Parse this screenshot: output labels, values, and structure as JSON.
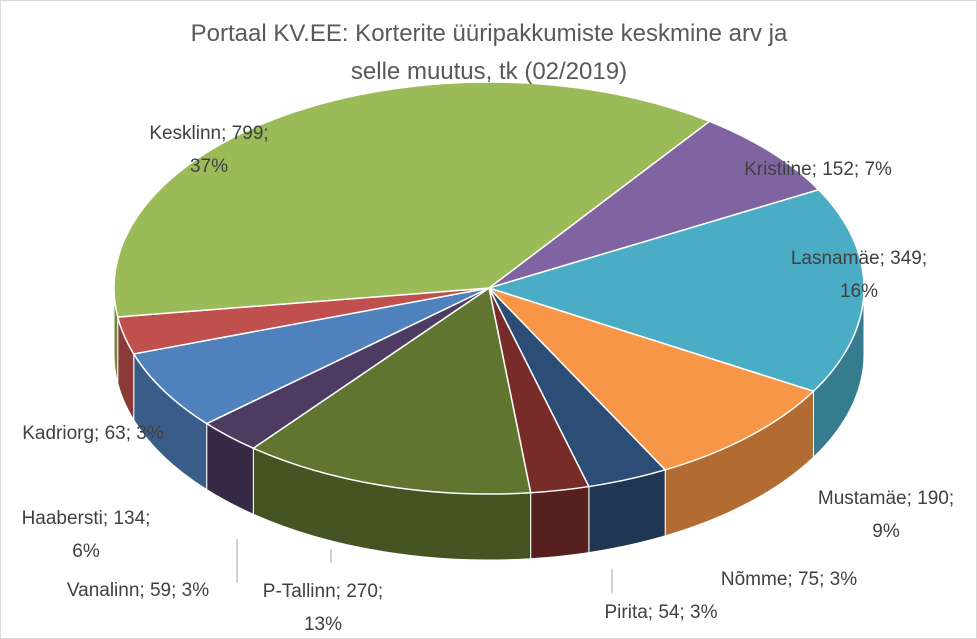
{
  "chart_data": {
    "type": "pie",
    "title_lines": [
      "Portaal KV.EE: Korterite üüripakkumiste keskmine arv ja",
      "selle muutus, tk (02/2019)"
    ],
    "slices": [
      {
        "name": "Kristiine",
        "value": 152,
        "label_lines": [
          "Kristiine; 152; 7%"
        ],
        "color": "#8064a2"
      },
      {
        "name": "Lasnamäe",
        "value": 349,
        "label_lines": [
          "Lasnamäe; 349;",
          "16%"
        ],
        "color": "#4bacc6"
      },
      {
        "name": "Mustamäe",
        "value": 190,
        "label_lines": [
          "Mustamäe; 190;",
          "9%"
        ],
        "color": "#f79646"
      },
      {
        "name": "Nõmme",
        "value": 75,
        "label_lines": [
          "Nõmme; 75; 3%"
        ],
        "color": "#2c4d75"
      },
      {
        "name": "Pirita",
        "value": 54,
        "label_lines": [
          "Pirita; 54; 3%"
        ],
        "color": "#772c2a"
      },
      {
        "name": "P-Tallinn",
        "value": 270,
        "label_lines": [
          "P-Tallinn; 270;",
          "13%"
        ],
        "color": "#5f7530"
      },
      {
        "name": "Vanalinn",
        "value": 59,
        "label_lines": [
          "Vanalinn; 59; 3%"
        ],
        "color": "#4d3b62"
      },
      {
        "name": "Haabersti",
        "value": 134,
        "label_lines": [
          "Haabersti; 134;",
          "6%"
        ],
        "color": "#4f81bd"
      },
      {
        "name": "Kadriorg",
        "value": 63,
        "label_lines": [
          "Kadriorg; 63; 3%"
        ],
        "color": "#c0504d"
      },
      {
        "name": "Kesklinn",
        "value": 799,
        "label_lines": [
          "Kesklinn; 799;",
          "37%"
        ],
        "color": "#9bbb59"
      }
    ],
    "start_angle_deg": -54,
    "style": "3d-pie"
  }
}
